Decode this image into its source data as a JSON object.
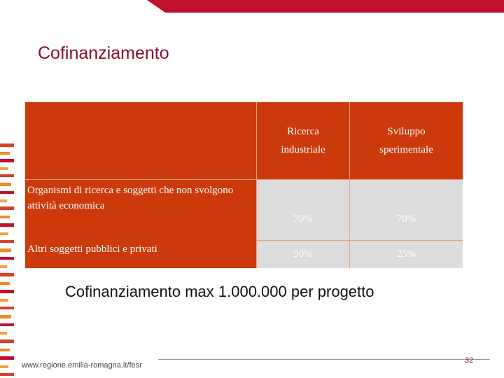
{
  "slide": {
    "title": "Cofinanziamento",
    "subtitle": "Cofinanziamento max 1.000.000 per progetto",
    "footer_url": "www.regione.emilia-romagna.it/fesr",
    "page_number": "32"
  },
  "table": {
    "col_headers": [
      "Ricerca industriale",
      "Sviluppo sperimentale"
    ],
    "rows": [
      {
        "label": "Organismi di ricerca e soggetti che non svolgono attività economica",
        "values": [
          "70%",
          "70%"
        ]
      },
      {
        "label": "Altri soggetti pubblici e privati",
        "values": [
          "50%",
          "25%"
        ]
      }
    ]
  },
  "colors": {
    "brand_crimson": "#c0102e",
    "table_header_red": "#cc3a0c",
    "table_value_grey": "#dcdcdc",
    "title_color": "#8a0f2a"
  }
}
